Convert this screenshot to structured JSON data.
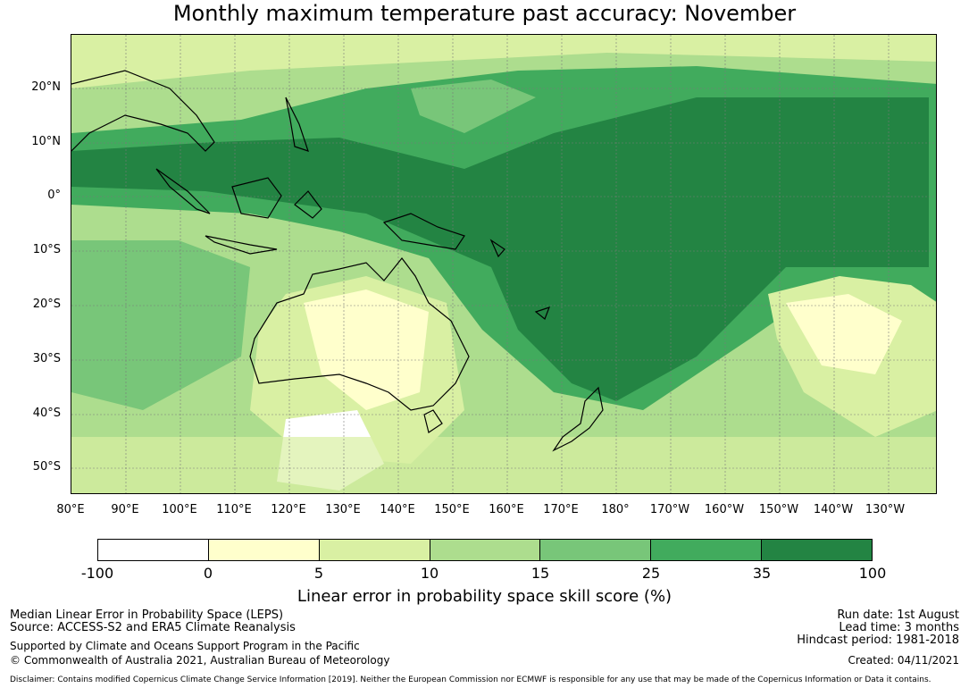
{
  "title": "Monthly maximum temperature past accuracy: November",
  "map": {
    "lat_labels": [
      "20°N",
      "10°N",
      "0°",
      "10°S",
      "20°S",
      "30°S",
      "40°S",
      "50°S"
    ],
    "lon_labels": [
      "80°E",
      "90°E",
      "100°E",
      "110°E",
      "120°E",
      "130°E",
      "140°E",
      "150°E",
      "160°E",
      "170°E",
      "180°",
      "170°W",
      "160°W",
      "150°W",
      "140°W",
      "130°W"
    ]
  },
  "colorbar": {
    "label": "Linear error in probability space skill score (%)",
    "ticks": [
      "-100",
      "0",
      "5",
      "10",
      "15",
      "25",
      "35",
      "100"
    ],
    "colors": [
      "#ffffff",
      "#ffffcc",
      "#d9f0a3",
      "#addd8e",
      "#78c679",
      "#41ab5d",
      "#238443"
    ]
  },
  "footer": {
    "method": "Median Linear Error in Probability Space (LEPS)",
    "source": "Source: ACCESS-S2 and ERA5 Climate Reanalysis",
    "support": "Supported by Climate and Oceans Support Program in the Pacific",
    "copyright": "© Commonwealth of Australia 2021, Australian Bureau of Meteorology",
    "disclaimer": "Disclaimer: Contains modified Copernicus Climate Change Service Information [2019]. Neither the European Commission nor ECMWF is responsible for any use that may be made of the Copernicus Information or Data it contains.",
    "run_date": "Run date: 1st August",
    "lead_time": "Lead time: 3 months",
    "hindcast": "Hindcast period: 1981-2018",
    "created": "Created: 04/11/2021"
  }
}
